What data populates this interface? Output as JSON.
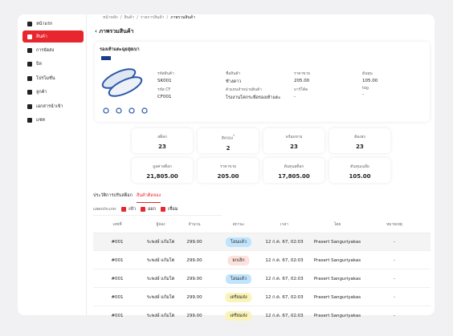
{
  "sidebar": {
    "items": [
      "หน้าแรก",
      "สินค้า",
      "การจัดส่ง",
      "บิล",
      "โปรโมชั่น",
      "ลูกค้า",
      "เอกสารนำเข้า",
      "แชท"
    ]
  },
  "breadcrumb": [
    "หน้าหลัก",
    "สินค้า",
    "รายการสินค้า",
    "ภาพรวมสินค้า"
  ],
  "page_title": "ภาพรวมสินค้า",
  "product": {
    "name": "รองเท้าแตะฉุยลุ่ยเบา",
    "fields": [
      {
        "label": "รหัสสินค้า",
        "value": "SK001"
      },
      {
        "label": "ชื่อสินค้า",
        "value": "ช้างดาว"
      },
      {
        "label": "ราคาขาย",
        "value": "205.00"
      },
      {
        "label": "ต้นทุน",
        "value": "105.00"
      },
      {
        "label": "รหัส CF",
        "value": "CF001"
      },
      {
        "label": "ตัวแทนจำหน่ายสินค้า",
        "value": "โรงงานโคกระพือรองเท้าแตะ"
      },
      {
        "label": "บาร์โค้ด",
        "value": "-"
      },
      {
        "label": "tag",
        "value": "-"
      }
    ]
  },
  "stats": [
    {
      "label": "สต็อก",
      "value": "23"
    },
    {
      "label": "ติดจอง",
      "value": "2",
      "mark": "*"
    },
    {
      "label": "พร้อมขาย",
      "value": "23"
    },
    {
      "label": "ต้องส่ง",
      "value": "23"
    },
    {
      "label": "มูลค่าสต็อก",
      "value": "21,805.00"
    },
    {
      "label": "ราคาขาย",
      "value": "205.00"
    },
    {
      "label": "ต้นทุนสต็อก",
      "value": "17,805.00"
    },
    {
      "label": "ต้นทุนเฉลี่ย",
      "value": "105.00"
    }
  ],
  "tabs": [
    "ประวัติการปรับสต็อก",
    "สินค้าติดจอง"
  ],
  "filter": {
    "label": "แสดงประเภท:",
    "options": [
      "เข้า",
      "ออก",
      "เชื่อม"
    ]
  },
  "table": {
    "headers": [
      "เลขที่",
      "ผู้จอง",
      "จำนวน",
      "สถานะ",
      "เวลา",
      "โดย",
      "หมายเหตุ"
    ],
    "rows": [
      [
        "#001",
        "ระพงษ์ แก้มโต",
        "299.00",
        "โอนแล้ว",
        "12 ก.ค. 67, 02:03",
        "Prasert Sanguriyakas",
        "-"
      ],
      [
        "#001",
        "ระพงษ์ แก้มโต",
        "299.00",
        "ยกเลิก",
        "12 ก.ค. 67, 02:03",
        "Prasert Sanguriyakas",
        "-"
      ],
      [
        "#001",
        "ระพงษ์ แก้มโต",
        "299.00",
        "โอนแล้ว",
        "12 ก.ค. 67, 02:03",
        "Prasert Sanguriyakas",
        "-"
      ],
      [
        "#001",
        "ระพงษ์ แก้มโต",
        "299.00",
        "เตรียมส่ง",
        "12 ก.ค. 67, 02:03",
        "Prasert Sanguriyakas",
        "-"
      ],
      [
        "#001",
        "ระพงษ์ แก้มโต",
        "299.00",
        "เตรียมส่ง",
        "12 ก.ค. 67, 02:03",
        "Prasert Sanguriyakas",
        "-"
      ]
    ]
  }
}
